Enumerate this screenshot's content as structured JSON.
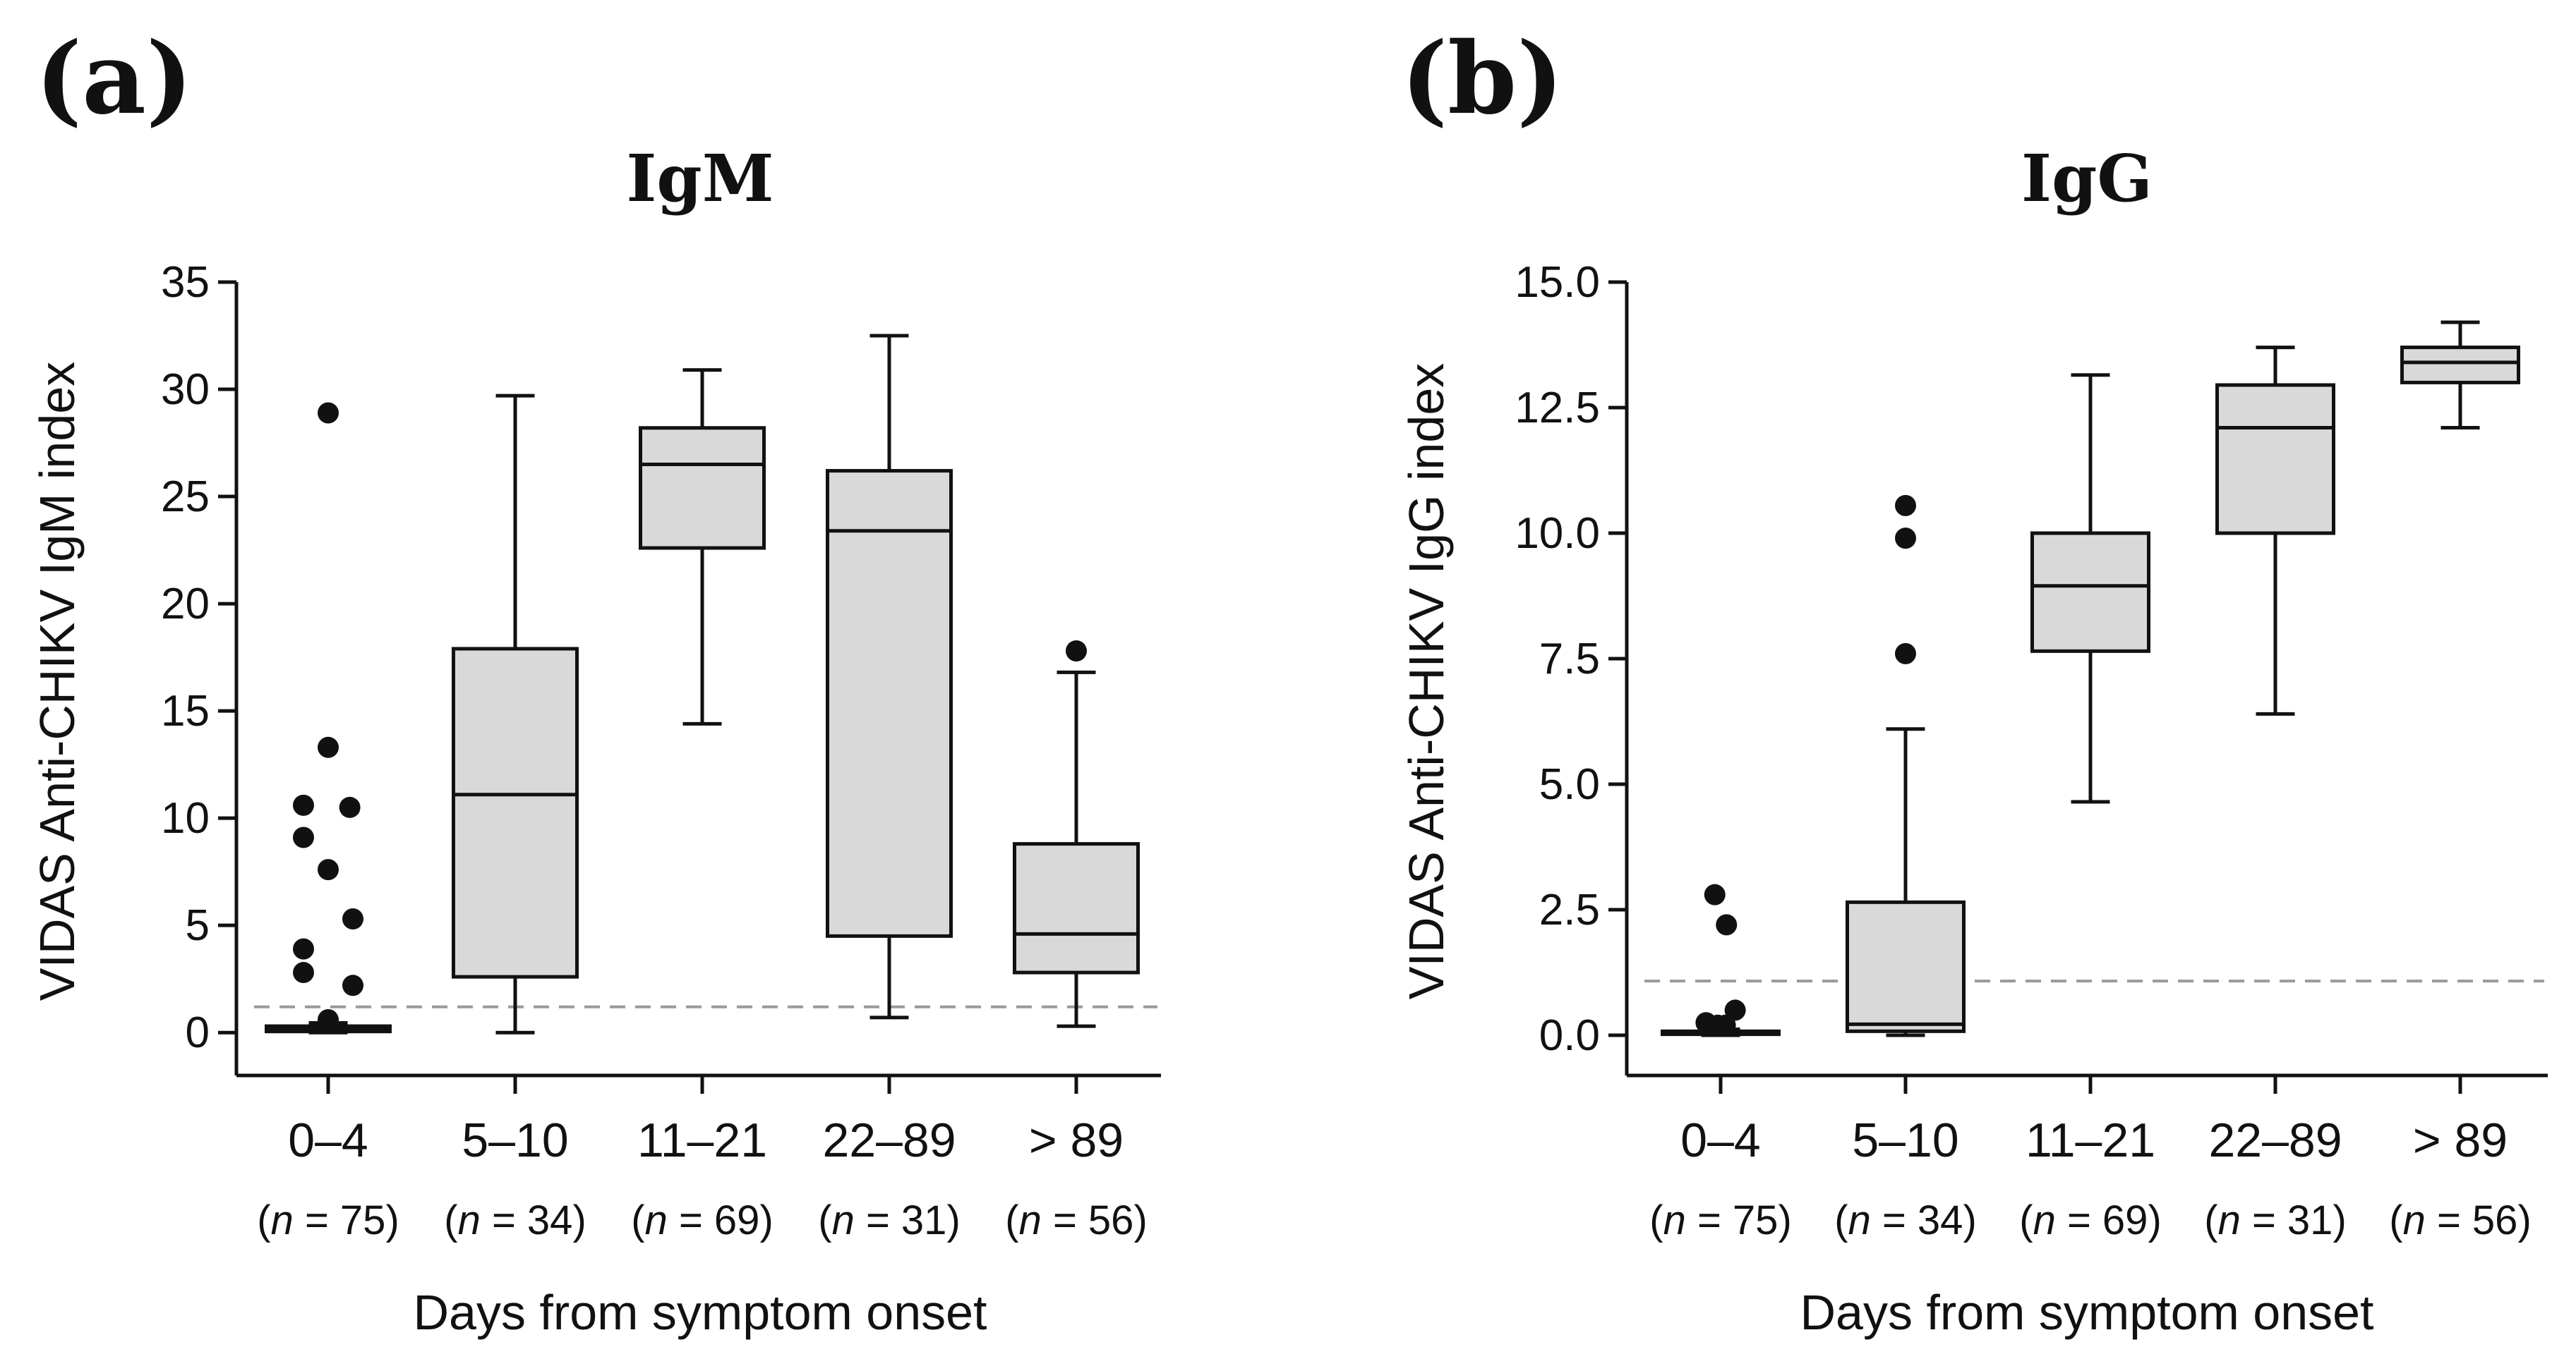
{
  "colors": {
    "box_fill": "#d9d9d9",
    "ink": "#111111",
    "cutoff_line": "#9a9a9a"
  },
  "chart_data": [
    {
      "type": "boxplot",
      "panel_label": "(a)",
      "title": "IgM",
      "xlabel": "Days from symptom onset",
      "ylabel": "VIDAS Anti-CHIKV IgM index",
      "ylim": [
        -2,
        35
      ],
      "yticks": [
        0,
        5,
        10,
        15,
        20,
        25,
        30,
        35
      ],
      "ytick_labels": [
        "0",
        "5",
        "10",
        "15",
        "20",
        "25",
        "30",
        "35"
      ],
      "cutoff": 1.2,
      "categories": [
        "0–4",
        "5–10",
        "11–21",
        "22–89",
        "> 89"
      ],
      "n_prefix": [
        "(",
        "(",
        "(",
        "(",
        "("
      ],
      "n_italic": [
        "n",
        "n",
        "n",
        "n",
        "n"
      ],
      "n_suffix": [
        " = 75)",
        " = 34)",
        " = 69)",
        " = 31)",
        " = 56)"
      ],
      "boxes": [
        {
          "whisker_low": 0.0,
          "q1": 0.05,
          "median": 0.15,
          "q3": 0.3,
          "whisker_high": 0.45
        },
        {
          "whisker_low": 0.0,
          "q1": 2.6,
          "median": 11.1,
          "q3": 17.9,
          "whisker_high": 29.7
        },
        {
          "whisker_low": 14.4,
          "q1": 22.6,
          "median": 26.5,
          "q3": 28.2,
          "whisker_high": 30.9
        },
        {
          "whisker_low": 0.7,
          "q1": 4.5,
          "median": 23.4,
          "q3": 26.2,
          "whisker_high": 32.5
        },
        {
          "whisker_low": 0.3,
          "q1": 2.8,
          "median": 4.6,
          "q3": 8.8,
          "whisker_high": 16.8
        }
      ],
      "outliers": [
        {
          "category": 0,
          "value": 28.9,
          "offset": 0
        },
        {
          "category": 0,
          "value": 13.3,
          "offset": 0
        },
        {
          "category": 0,
          "value": 10.6,
          "offset": -0.4
        },
        {
          "category": 0,
          "value": 10.5,
          "offset": 0.35
        },
        {
          "category": 0,
          "value": 9.1,
          "offset": -0.4
        },
        {
          "category": 0,
          "value": 7.6,
          "offset": 0
        },
        {
          "category": 0,
          "value": 5.3,
          "offset": 0.4
        },
        {
          "category": 0,
          "value": 3.9,
          "offset": -0.4
        },
        {
          "category": 0,
          "value": 2.8,
          "offset": -0.4
        },
        {
          "category": 0,
          "value": 2.2,
          "offset": 0.4
        },
        {
          "category": 0,
          "value": 0.6,
          "offset": 0
        },
        {
          "category": 4,
          "value": 17.8,
          "offset": 0
        }
      ]
    },
    {
      "type": "boxplot",
      "panel_label": "(b)",
      "title": "IgG",
      "xlabel": "Days from symptom onset",
      "ylabel": "VIDAS Anti-CHIKV IgG index",
      "ylim": [
        -0.8,
        15
      ],
      "yticks": [
        0,
        2.5,
        5,
        7.5,
        10,
        12.5,
        15
      ],
      "ytick_labels": [
        "0.0",
        "2.5",
        "5.0",
        "7.5",
        "10.0",
        "12.5",
        "15.0"
      ],
      "cutoff": 1.08,
      "categories": [
        "0–4",
        "5–10",
        "11–21",
        "22–89",
        "> 89"
      ],
      "n_prefix": [
        "(",
        "(",
        "(",
        "(",
        "("
      ],
      "n_italic": [
        "n",
        "n",
        "n",
        "n",
        "n"
      ],
      "n_suffix": [
        " = 75)",
        " = 34)",
        " = 69)",
        " = 31)",
        " = 56)"
      ],
      "boxes": [
        {
          "whisker_low": 0.0,
          "q1": 0.02,
          "median": 0.05,
          "q3": 0.08,
          "whisker_high": 0.12
        },
        {
          "whisker_low": 0.0,
          "q1": 0.08,
          "median": 0.22,
          "q3": 2.65,
          "whisker_high": 6.1
        },
        {
          "whisker_low": 4.65,
          "q1": 7.65,
          "median": 8.95,
          "q3": 10.0,
          "whisker_high": 13.15
        },
        {
          "whisker_low": 6.4,
          "q1": 10.0,
          "median": 12.1,
          "q3": 12.95,
          "whisker_high": 13.7
        },
        {
          "whisker_low": 12.1,
          "q1": 13.0,
          "median": 13.4,
          "q3": 13.7,
          "whisker_high": 14.2
        }
      ],
      "outliers": [
        {
          "category": 0,
          "value": 2.8,
          "offset": -0.1
        },
        {
          "category": 0,
          "value": 2.2,
          "offset": 0.1
        },
        {
          "category": 0,
          "value": 0.5,
          "offset": 0.25
        },
        {
          "category": 0,
          "value": 0.25,
          "offset": -0.25
        },
        {
          "category": 0,
          "value": 0.2,
          "offset": -0.05
        },
        {
          "category": 0,
          "value": 0.2,
          "offset": 0.08
        },
        {
          "category": 1,
          "value": 10.55,
          "offset": 0
        },
        {
          "category": 1,
          "value": 9.9,
          "offset": 0
        },
        {
          "category": 1,
          "value": 7.6,
          "offset": 0
        }
      ]
    }
  ]
}
